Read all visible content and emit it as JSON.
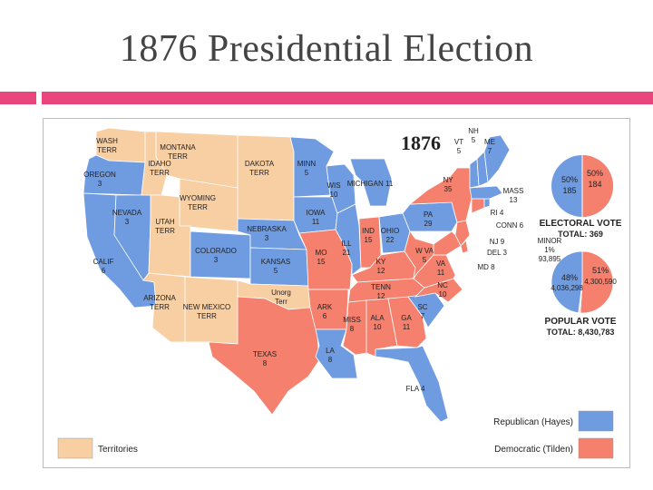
{
  "slide": {
    "title": "1876 Presidential Election"
  },
  "colors": {
    "republican": "#6f9be0",
    "democratic": "#f4806d",
    "territories": "#f8cfa3",
    "unorganized": "#f8cfa3",
    "ocean": "#ffffff",
    "accent": "#e8467c"
  },
  "map": {
    "year": "1876",
    "states": [
      {
        "name": "WASH\nTERR",
        "party": "territories"
      },
      {
        "name": "MONTANA\nTERR",
        "party": "territories"
      },
      {
        "name": "DAKOTA\nTERR",
        "party": "territories"
      },
      {
        "name": "OREGON\n3",
        "party": "republican"
      },
      {
        "name": "IDAHO\nTERR",
        "party": "territories"
      },
      {
        "name": "WYOMING\nTERR",
        "party": "territories"
      },
      {
        "name": "MINN\n5",
        "party": "republican"
      },
      {
        "name": "WIS\n10",
        "party": "republican"
      },
      {
        "name": "MICHIGAN 11",
        "party": "republican"
      },
      {
        "name": "NEVADA\n3",
        "party": "republican"
      },
      {
        "name": "UTAH\nTERR",
        "party": "territories"
      },
      {
        "name": "COLORADO\n3",
        "party": "republican"
      },
      {
        "name": "NEBRASKA\n3",
        "party": "republican"
      },
      {
        "name": "IOWA\n11",
        "party": "republican"
      },
      {
        "name": "ILL\n21",
        "party": "republican"
      },
      {
        "name": "IND\n15",
        "party": "democratic"
      },
      {
        "name": "OHIO\n22",
        "party": "republican"
      },
      {
        "name": "PA\n29",
        "party": "republican"
      },
      {
        "name": "NY\n35",
        "party": "democratic"
      },
      {
        "name": "CALIF\n6",
        "party": "republican"
      },
      {
        "name": "KANSAS\n5",
        "party": "republican"
      },
      {
        "name": "MO\n15",
        "party": "democratic"
      },
      {
        "name": "KY\n12",
        "party": "democratic"
      },
      {
        "name": "W VA\n5",
        "party": "democratic"
      },
      {
        "name": "VA\n11",
        "party": "democratic"
      },
      {
        "name": "ARIZONA\nTERR",
        "party": "territories"
      },
      {
        "name": "NEW MEXICO\nTERR",
        "party": "territories"
      },
      {
        "name": "Unorg\nTerr",
        "party": "unorganized"
      },
      {
        "name": "TENN\n12",
        "party": "democratic"
      },
      {
        "name": "NC\n10",
        "party": "democratic"
      },
      {
        "name": "ARK\n6",
        "party": "democratic"
      },
      {
        "name": "SC\n7",
        "party": "republican"
      },
      {
        "name": "TEXAS\n8",
        "party": "democratic"
      },
      {
        "name": "MISS\n8",
        "party": "democratic"
      },
      {
        "name": "ALA\n10",
        "party": "democratic"
      },
      {
        "name": "GA\n11",
        "party": "democratic"
      },
      {
        "name": "LA\n8",
        "party": "republican"
      },
      {
        "name": "FLA 4",
        "party": "republican"
      },
      {
        "name": "VT\n5",
        "party": "republican"
      },
      {
        "name": "NH\n5",
        "party": "republican"
      },
      {
        "name": "ME\n7",
        "party": "republican"
      },
      {
        "name": "MASS\n13",
        "party": "republican"
      },
      {
        "name": "RI 4",
        "party": "republican"
      },
      {
        "name": "CONN 6",
        "party": "democratic"
      },
      {
        "name": "NJ 9",
        "party": "democratic"
      },
      {
        "name": "DEL 3",
        "party": "democratic"
      },
      {
        "name": "MD 8",
        "party": "democratic"
      }
    ]
  },
  "electoral_vote": {
    "title": "ELECTORAL VOTE",
    "total_label": "TOTAL: 369",
    "republican_pct": "50%",
    "republican_votes": "185",
    "democratic_pct": "50%",
    "democratic_votes": "184"
  },
  "popular_vote": {
    "title": "POPULAR VOTE",
    "total_label": "TOTAL: 8,430,783",
    "minor_label": "MINOR",
    "minor_pct": "1%",
    "minor_votes": "93,895",
    "republican_pct": "48%",
    "republican_votes": "4,036,298",
    "democratic_pct": "51%",
    "democratic_votes": "4,300,590",
    "republican_share": 0.48,
    "democratic_share": 0.51,
    "minor_share": 0.01
  },
  "legend": {
    "territories": "Territories",
    "republican": "Republican (Hayes)",
    "democratic": "Democratic (Tilden)"
  }
}
